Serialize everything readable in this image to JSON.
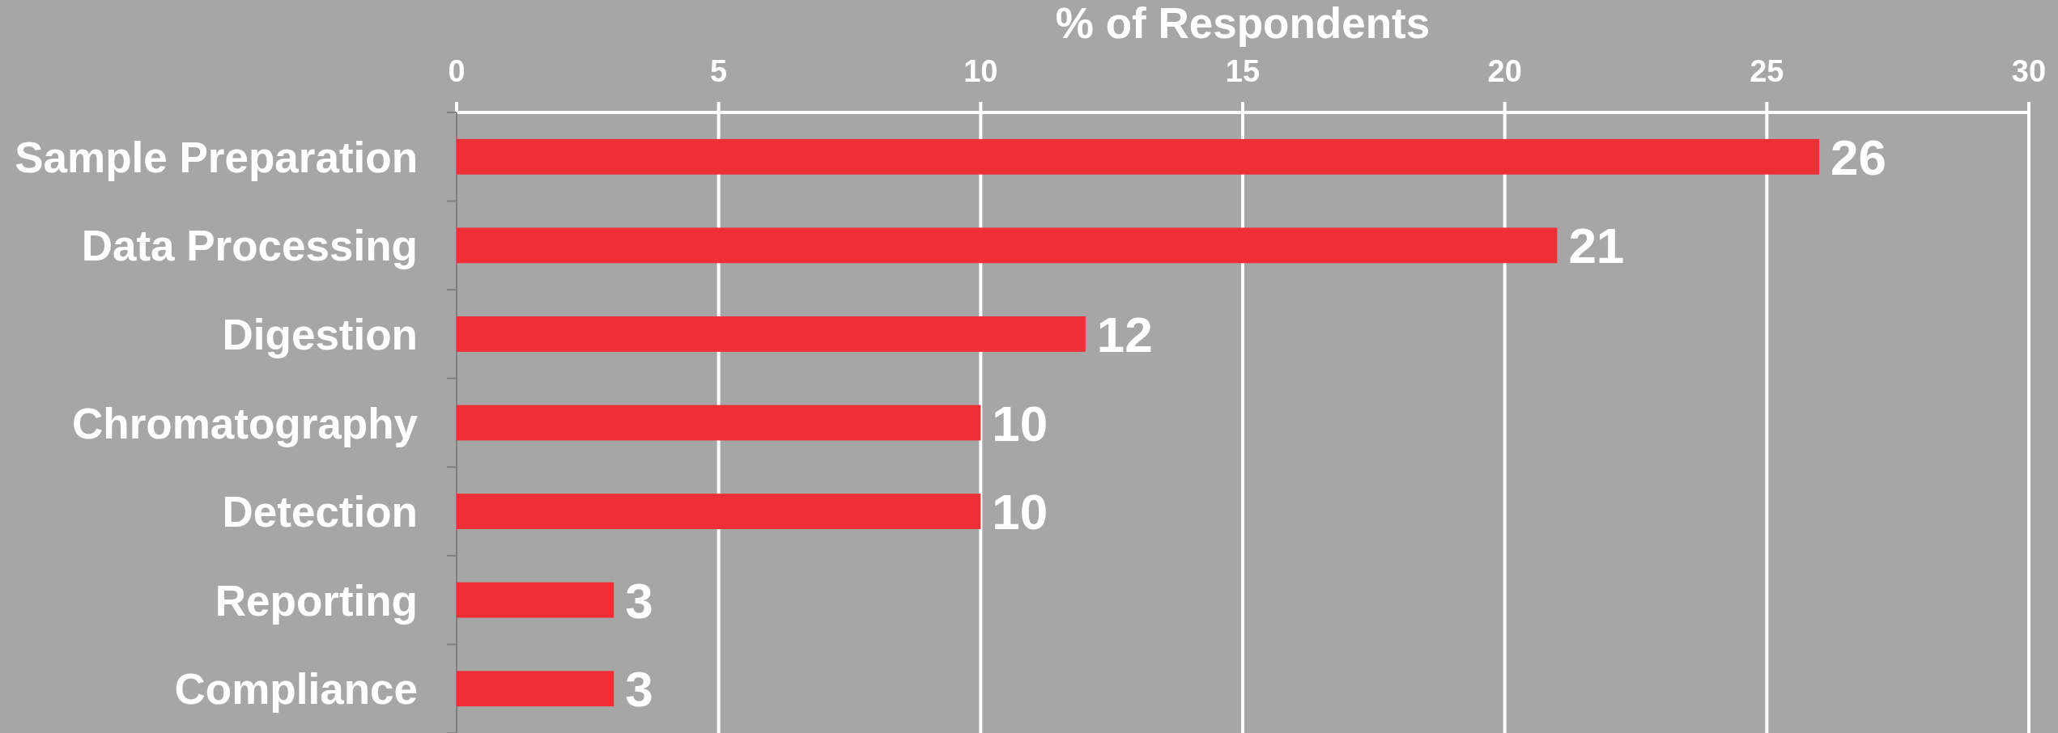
{
  "chart_data": {
    "type": "bar",
    "orientation": "horizontal",
    "xlabel": "% of Respondents",
    "categories": [
      "Sample Preparation",
      "Data Processing",
      "Digestion",
      "Chromatography",
      "Detection",
      "Reporting",
      "Compliance"
    ],
    "values": [
      26,
      21,
      12,
      10,
      10,
      3,
      3
    ],
    "color": "#ee3036",
    "xlim": [
      0,
      30
    ],
    "xticks": [
      0,
      5,
      10,
      15,
      20,
      25,
      30
    ],
    "grid": "x",
    "data_labels": true
  }
}
